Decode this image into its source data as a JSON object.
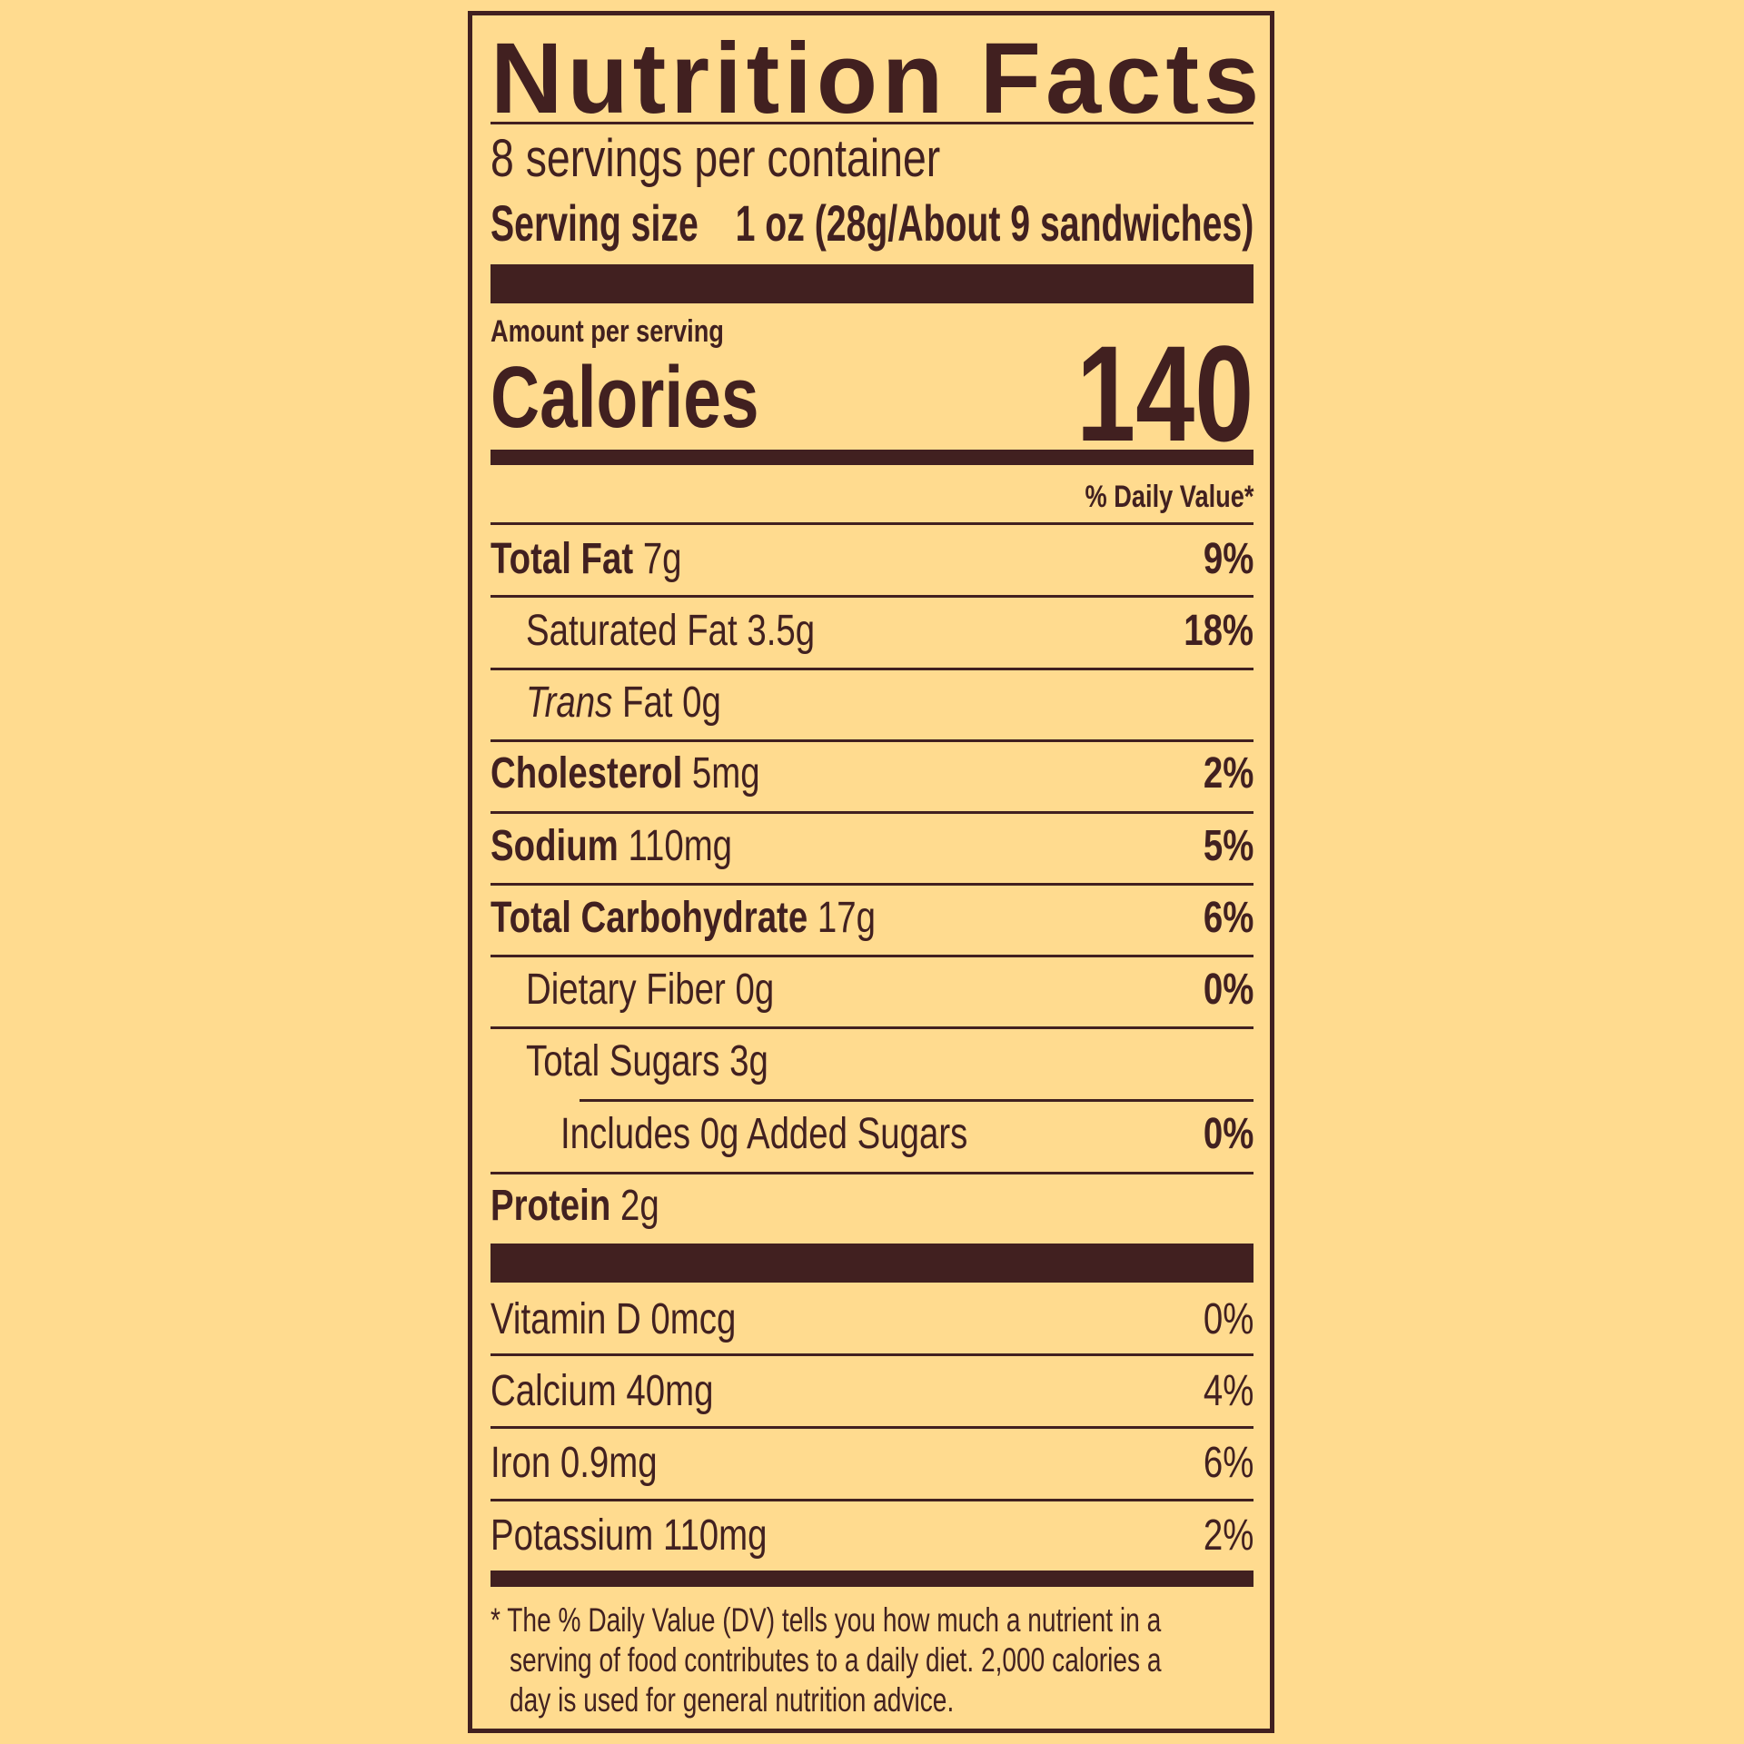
{
  "title": "Nutrition Facts",
  "servings": "8 servings per container",
  "serving_size_label": "Serving size",
  "serving_size_value": "1 oz (28g/About 9 sandwiches)",
  "amount_per_serving": "Amount per serving",
  "calories_label": "Calories",
  "calories_value": "140",
  "dv_header": "% Daily Value*",
  "nutrients": [
    {
      "name": "Total Fat",
      "amount": "7g",
      "dv": "9%"
    },
    {
      "name": "Saturated Fat",
      "amount": "3.5g",
      "dv": "18%"
    },
    {
      "name": "Trans",
      "name_rest": "Fat",
      "amount": "0g",
      "dv": ""
    },
    {
      "name": "Cholesterol",
      "amount": "5mg",
      "dv": "2%"
    },
    {
      "name": "Sodium",
      "amount": "110mg",
      "dv": "5%"
    },
    {
      "name": "Total Carbohydrate",
      "amount": "17g",
      "dv": "6%"
    },
    {
      "name": "Dietary Fiber",
      "amount": "0g",
      "dv": "0%"
    },
    {
      "name": "Total Sugars",
      "amount": "3g",
      "dv": ""
    },
    {
      "name": "Includes 0g Added Sugars",
      "amount": "",
      "dv": "0%"
    },
    {
      "name": "Protein",
      "amount": "2g",
      "dv": ""
    }
  ],
  "vitamins": [
    {
      "name": "Vitamin D",
      "amount": "0mcg",
      "dv": "0%"
    },
    {
      "name": "Calcium",
      "amount": "40mg",
      "dv": "4%"
    },
    {
      "name": "Iron",
      "amount": "0.9mg",
      "dv": "6%"
    },
    {
      "name": "Potassium",
      "amount": "110mg",
      "dv": "2%"
    }
  ],
  "footnote": [
    "* The % Daily Value (DV) tells you how much a nutrient in a",
    "serving of food contributes to a daily diet. 2,000 calories a",
    "day is used for general nutrition advice."
  ]
}
